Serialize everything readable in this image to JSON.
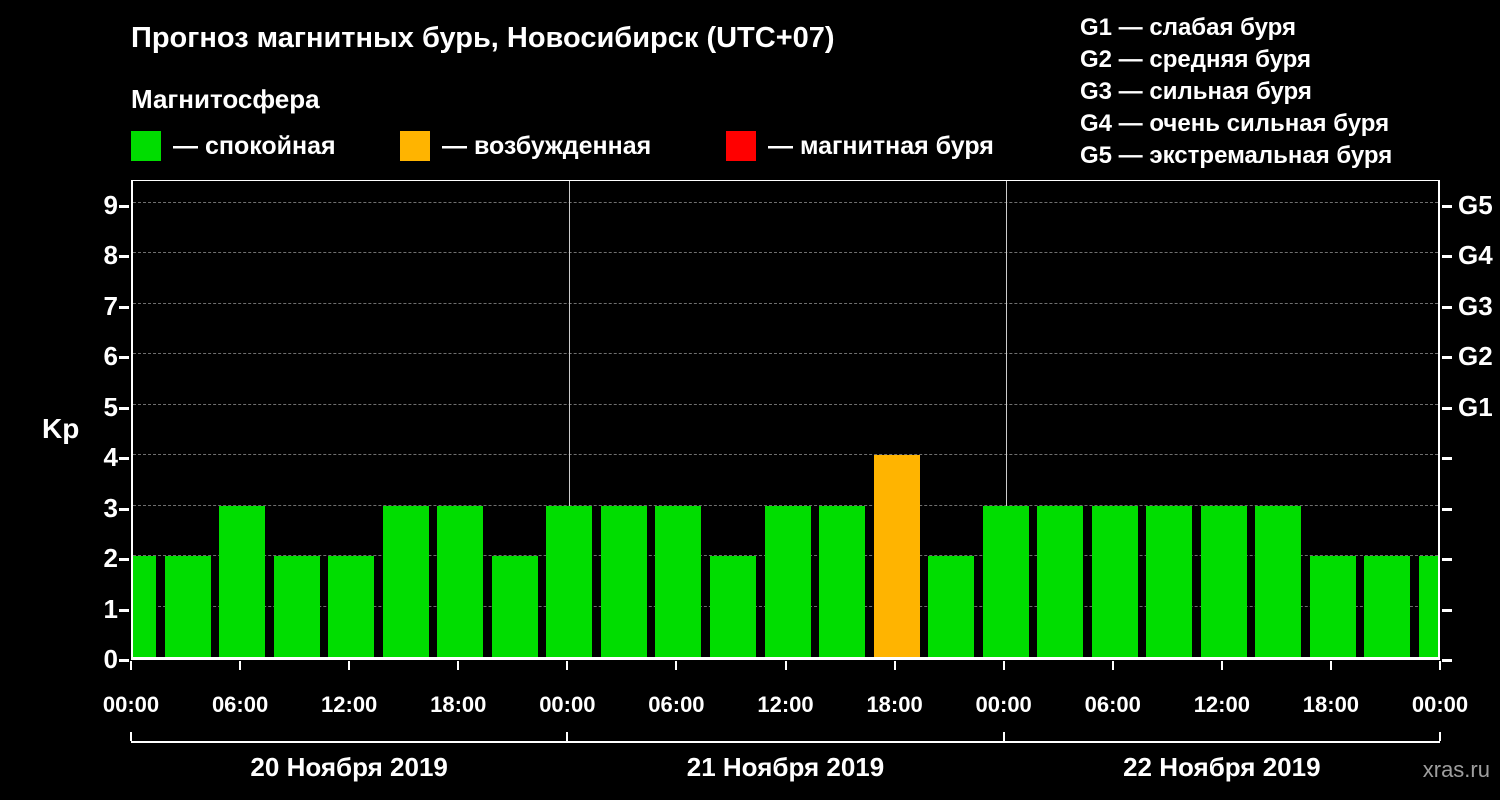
{
  "header": {
    "title": "Прогноз магнитных бурь, Новосибирск (UTC+07)",
    "subtitle": "Магнитосфера"
  },
  "legend": {
    "items": [
      {
        "name": "quiet",
        "label": "— спокойная",
        "color": "#00dd00"
      },
      {
        "name": "excited",
        "label": "— возбужденная",
        "color": "#ffb400"
      },
      {
        "name": "storm",
        "label": "— магнитная буря",
        "color": "#ff0000"
      }
    ]
  },
  "g_scale": {
    "items": [
      "G1 — слабая буря",
      "G2 — средняя буря",
      "G3 — сильная буря",
      "G4 — очень сильная буря",
      "G5 — экстремальная буря"
    ]
  },
  "chart_data": {
    "type": "bar",
    "title": "Прогноз магнитных бурь, Новосибирск (UTC+07)",
    "ylabel": "Kp",
    "ylim": [
      0,
      9.5
    ],
    "yticks": [
      0,
      1,
      2,
      3,
      4,
      5,
      6,
      7,
      8,
      9
    ],
    "right_axis_labels": [
      {
        "label": "G1",
        "kp": 5
      },
      {
        "label": "G2",
        "kp": 6
      },
      {
        "label": "G3",
        "kp": 7
      },
      {
        "label": "G4",
        "kp": 8
      },
      {
        "label": "G5",
        "kp": 9
      }
    ],
    "x_tick_labels": [
      "00:00",
      "06:00",
      "12:00",
      "18:00",
      "00:00",
      "06:00",
      "12:00",
      "18:00",
      "00:00",
      "06:00",
      "12:00",
      "18:00",
      "00:00"
    ],
    "interval_hours": 3,
    "days": [
      {
        "date": "20 Ноября 2019",
        "kp_values": [
          2,
          2,
          3,
          2,
          2,
          3,
          3,
          2
        ]
      },
      {
        "date": "21 Ноября 2019",
        "kp_values": [
          3,
          3,
          3,
          2,
          3,
          3,
          4,
          2
        ]
      },
      {
        "date": "22 Ноября 2019",
        "kp_values": [
          3,
          3,
          3,
          3,
          3,
          3,
          2,
          2
        ]
      }
    ],
    "trailing_kp": 2,
    "colors": {
      "quiet": "#00dd00",
      "excited": "#ffb400",
      "storm": "#ff0000"
    },
    "color_thresholds": {
      "quiet_max": 3,
      "excited_max": 4
    },
    "grid": "dashed horizontal lines at each Kp integer",
    "legend_position": "top-left"
  },
  "footer": {
    "watermark": "xras.ru"
  }
}
